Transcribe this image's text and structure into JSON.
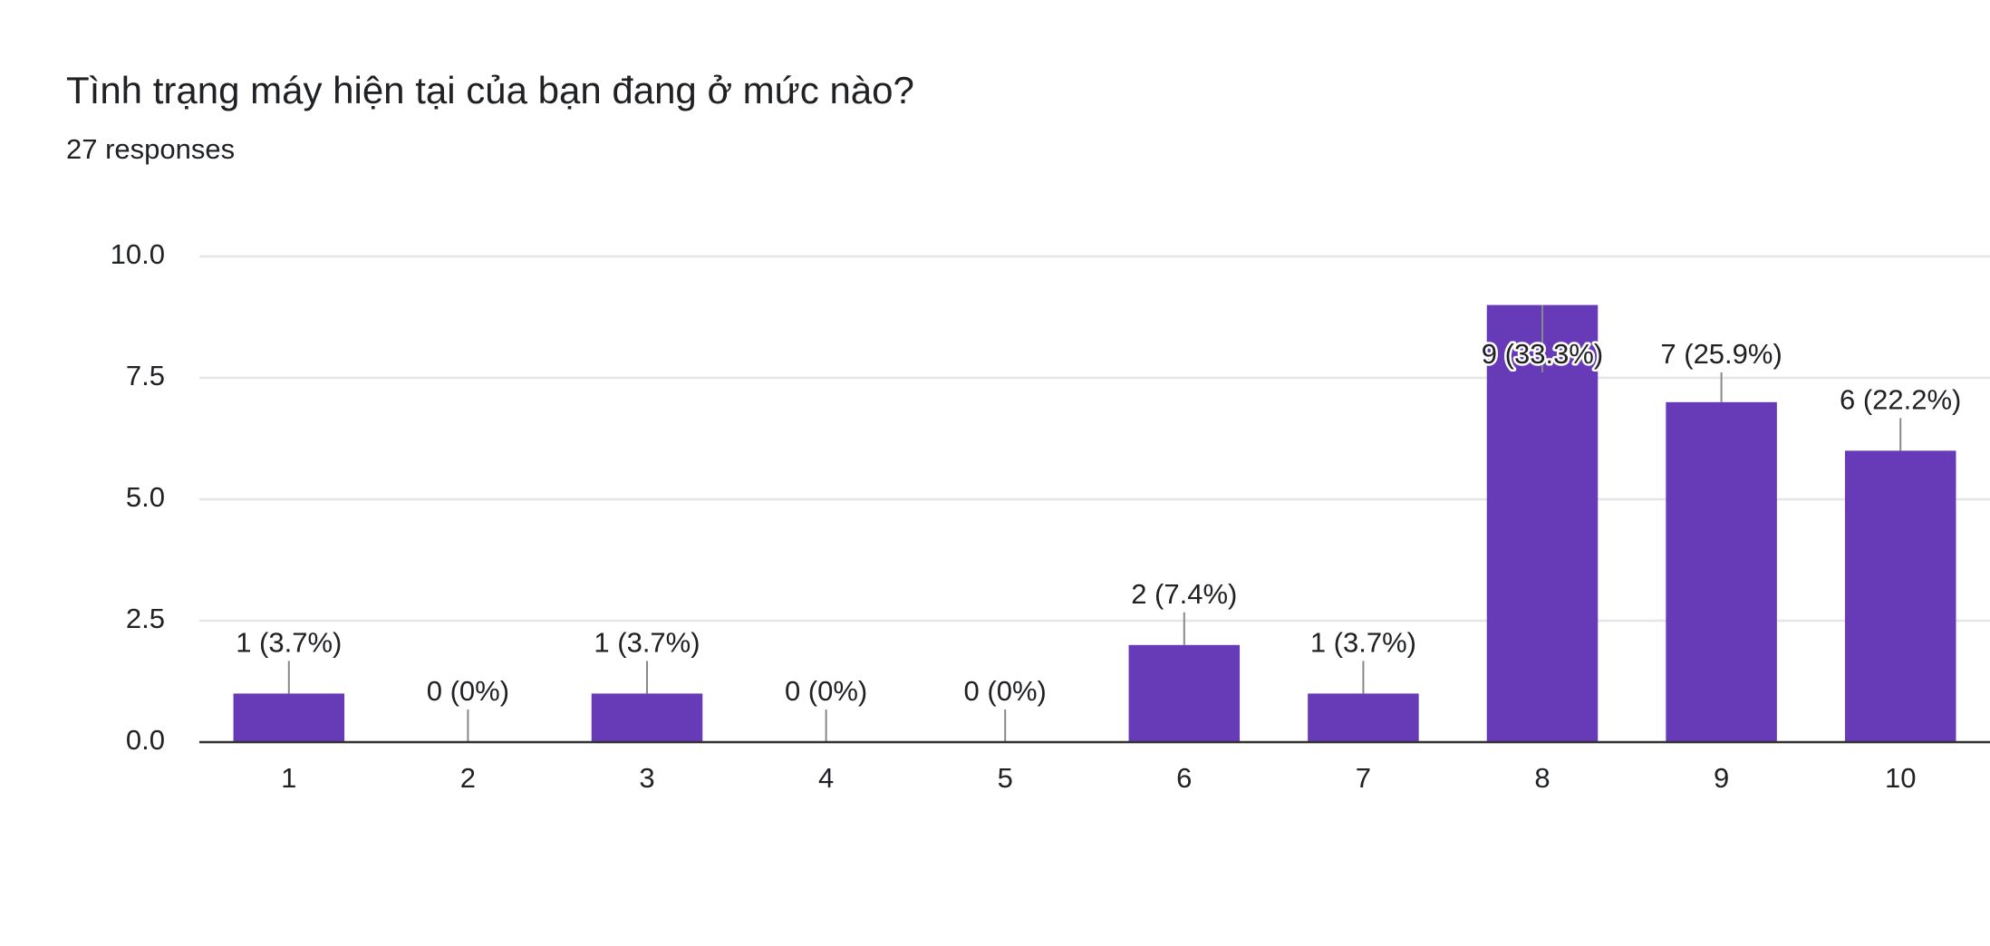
{
  "chart_data": {
    "type": "bar",
    "title": "Tình trạng máy hiện tại của bạn đang ở mức nào?",
    "subtitle": "27 responses",
    "categories": [
      "1",
      "2",
      "3",
      "4",
      "5",
      "6",
      "7",
      "8",
      "9",
      "10"
    ],
    "values": [
      1,
      0,
      1,
      0,
      0,
      2,
      1,
      9,
      7,
      6
    ],
    "value_labels": [
      "1 (3.7%)",
      "0 (0%)",
      "1 (3.7%)",
      "0 (0%)",
      "0 (0%)",
      "2 (7.4%)",
      "1 (3.7%)",
      "9 (33.3%)",
      "7 (25.9%)",
      "6 (22.2%)"
    ],
    "color": "#673ab7",
    "ylim": [
      0,
      10
    ],
    "yticks": [
      {
        "value": 0,
        "label": "0.0"
      },
      2.5,
      {
        "value": 5,
        "label": "5.0"
      },
      7.5,
      {
        "value": 10,
        "label": "10.0"
      }
    ],
    "grid": true
  }
}
